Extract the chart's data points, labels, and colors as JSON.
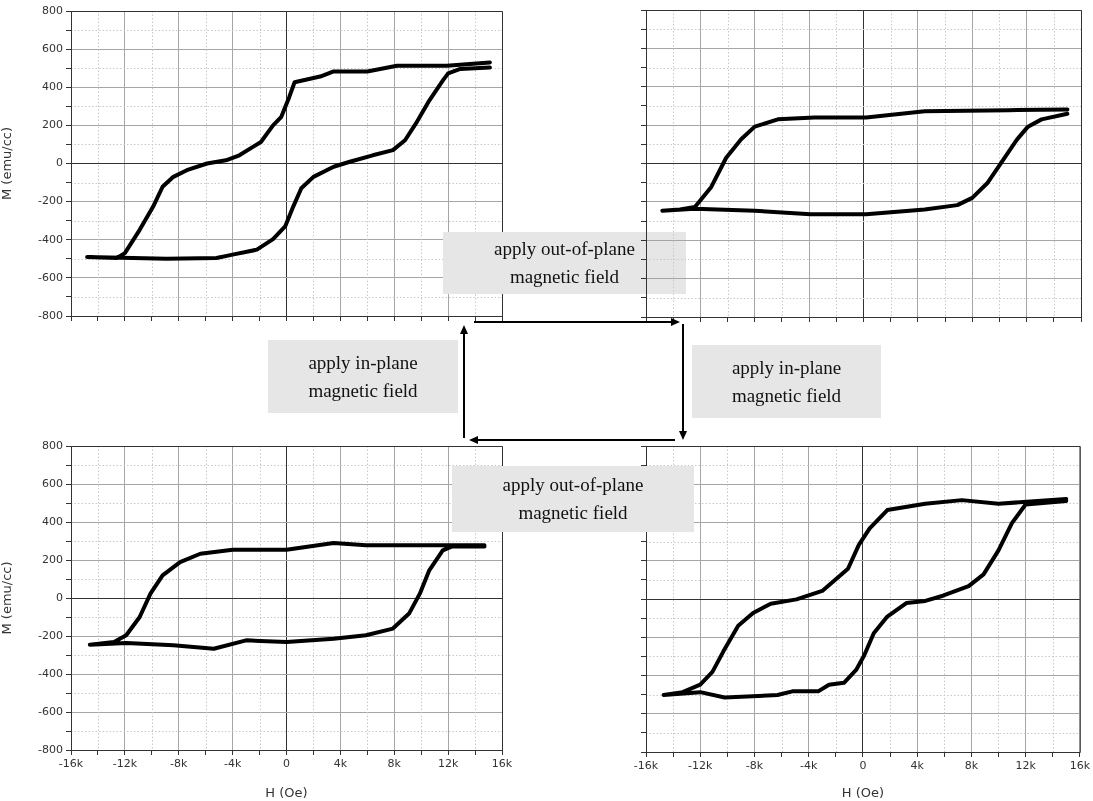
{
  "chart_data": [
    {
      "type": "line",
      "ylabel": "M (emu/cc)",
      "tick_labels": "y",
      "grid": true,
      "marker": "none",
      "line_style": "solid",
      "xlim": [
        -16000,
        16000
      ],
      "ylim": [
        -800,
        800
      ],
      "xticks": [
        {
          "value": -16000,
          "label": null
        },
        {
          "value": -14000,
          "label": null
        },
        {
          "value": -12000,
          "label": null
        },
        {
          "value": -10000,
          "label": null
        },
        {
          "value": -8000,
          "label": null
        },
        {
          "value": -6000,
          "label": null
        },
        {
          "value": -4000,
          "label": null
        },
        {
          "value": -2000,
          "label": null
        },
        {
          "value": 0,
          "label": null
        },
        {
          "value": 2000,
          "label": null
        },
        {
          "value": 4000,
          "label": null
        },
        {
          "value": 6000,
          "label": null
        },
        {
          "value": 8000,
          "label": null
        },
        {
          "value": 10000,
          "label": null
        },
        {
          "value": 12000,
          "label": null
        },
        {
          "value": 14000,
          "label": null
        },
        {
          "value": 16000,
          "label": null
        }
      ],
      "yticks": [
        -800,
        {
          "value": -700,
          "label": null
        },
        -600,
        {
          "value": -500,
          "label": null
        },
        -400,
        {
          "value": -300,
          "label": null
        },
        -200,
        {
          "value": -100,
          "label": null
        },
        0,
        {
          "value": 100,
          "label": null
        },
        200,
        {
          "value": 300,
          "label": null
        },
        400,
        {
          "value": 500,
          "label": null
        },
        600,
        {
          "value": 700,
          "label": null
        },
        800
      ],
      "series": [
        {
          "color": "#000000",
          "x": [
            15100,
            11900,
            8200,
            6000,
            3500,
            2500,
            600,
            200,
            -400,
            -1000,
            -1900,
            -3500,
            -4500,
            -5900,
            -7400,
            -8400,
            -9200,
            -9900,
            -10900,
            -12000,
            -12600,
            -14800,
            -11400,
            -8900,
            -5200,
            -4000,
            -2200,
            -1000,
            -100,
            500,
            1100,
            2000,
            3500,
            4700,
            6400,
            7900,
            8800,
            9600,
            10600,
            11600,
            12000,
            12900,
            15100
          ],
          "values": [
            530,
            513,
            513,
            483,
            483,
            456,
            426,
            348,
            243,
            200,
            113,
            43,
            17,
            0,
            -35,
            -70,
            -122,
            -226,
            -348,
            -470,
            -496,
            -490,
            -496,
            -500,
            -496,
            -478,
            -452,
            -397,
            -330,
            -226,
            -130,
            -70,
            -17,
            9,
            43,
            70,
            122,
            209,
            330,
            435,
            473,
            496,
            504
          ]
        }
      ],
      "annotations": [
        "apply out-of-plane magnetic field"
      ]
    },
    {
      "type": "line",
      "tick_labels": false,
      "grid": true,
      "marker": "none",
      "line_style": "solid",
      "xlim": [
        -16000,
        16000
      ],
      "ylim": [
        -800,
        800
      ],
      "xticks": [
        {
          "value": -16000,
          "label": null
        },
        {
          "value": -14000,
          "label": null
        },
        {
          "value": -12000,
          "label": null
        },
        {
          "value": -10000,
          "label": null
        },
        {
          "value": -8000,
          "label": null
        },
        {
          "value": -6000,
          "label": null
        },
        {
          "value": -4000,
          "label": null
        },
        {
          "value": -2000,
          "label": null
        },
        {
          "value": 0,
          "label": null
        },
        {
          "value": 2000,
          "label": null
        },
        {
          "value": 4000,
          "label": null
        },
        {
          "value": 6000,
          "label": null
        },
        {
          "value": 8000,
          "label": null
        },
        {
          "value": 10000,
          "label": null
        },
        {
          "value": 12000,
          "label": null
        },
        {
          "value": 14000,
          "label": null
        },
        {
          "value": 16000,
          "label": null
        }
      ],
      "yticks": [
        {
          "value": -800,
          "label": null
        },
        {
          "value": -700,
          "label": null
        },
        {
          "value": -600,
          "label": null
        },
        {
          "value": -500,
          "label": null
        },
        {
          "value": -400,
          "label": null
        },
        {
          "value": -300,
          "label": null
        },
        {
          "value": -200,
          "label": null
        },
        {
          "value": -100,
          "label": null
        },
        {
          "value": 0,
          "label": null
        },
        {
          "value": 100,
          "label": null
        },
        {
          "value": 200,
          "label": null
        },
        {
          "value": 300,
          "label": null
        },
        {
          "value": 400,
          "label": null
        },
        {
          "value": 500,
          "label": null
        },
        {
          "value": 600,
          "label": null
        },
        {
          "value": 700,
          "label": null
        },
        {
          "value": 800,
          "label": null
        }
      ],
      "series": [
        {
          "color": "#000000",
          "x": [
            15000,
            10700,
            4500,
            200,
            -3600,
            -6300,
            -8000,
            -9000,
            -10100,
            -11200,
            -12400,
            -13500,
            -14800,
            -12400,
            -8000,
            -3900,
            200,
            4500,
            6900,
            8000,
            9100,
            10200,
            11300,
            12100,
            13100,
            15000
          ],
          "values": [
            282,
            278,
            272,
            240,
            240,
            230,
            192,
            126,
            30,
            -122,
            -227,
            -240,
            -246,
            -236,
            -246,
            -265,
            -265,
            -240,
            -217,
            -179,
            -103,
            11,
            126,
            192,
            230,
            259
          ]
        }
      ],
      "annotations": [
        "apply in-plane magnetic field"
      ]
    },
    {
      "type": "line",
      "xlabel": "H (Oe)",
      "ylabel": "M (emu/cc)",
      "grid": true,
      "marker": "none",
      "line_style": "solid",
      "xlim": [
        -16000,
        16000
      ],
      "ylim": [
        -800,
        800
      ],
      "xticks": [
        {
          "value": -16000,
          "label": "-16k"
        },
        {
          "value": -14000,
          "label": null
        },
        {
          "value": -12000,
          "label": "-12k"
        },
        {
          "value": -10000,
          "label": null
        },
        {
          "value": -8000,
          "label": "-8k"
        },
        {
          "value": -6000,
          "label": null
        },
        {
          "value": -4000,
          "label": "-4k"
        },
        {
          "value": -2000,
          "label": null
        },
        0,
        {
          "value": 2000,
          "label": null
        },
        {
          "value": 4000,
          "label": "4k"
        },
        {
          "value": 6000,
          "label": null
        },
        {
          "value": 8000,
          "label": "8k"
        },
        {
          "value": 10000,
          "label": null
        },
        {
          "value": 12000,
          "label": "12k"
        },
        {
          "value": 14000,
          "label": null
        },
        {
          "value": 16000,
          "label": "16k"
        }
      ],
      "yticks": [
        -800,
        {
          "value": -700,
          "label": null
        },
        -600,
        {
          "value": -500,
          "label": null
        },
        -400,
        {
          "value": -300,
          "label": null
        },
        -200,
        {
          "value": -100,
          "label": null
        },
        0,
        {
          "value": 100,
          "label": null
        },
        200,
        {
          "value": 300,
          "label": null
        },
        400,
        {
          "value": 500,
          "label": null
        },
        600,
        {
          "value": 700,
          "label": null
        },
        800
      ],
      "series": [
        {
          "color": "#000000",
          "x": [
            14700,
            5900,
            3500,
            0,
            -4000,
            -6400,
            -7900,
            -9200,
            -10100,
            -10900,
            -11900,
            -12800,
            -14600,
            -11900,
            -8400,
            -5400,
            -3000,
            0,
            3500,
            5900,
            7900,
            9100,
            9900,
            10600,
            11600,
            12300,
            14700
          ],
          "values": [
            277,
            277,
            289,
            254,
            254,
            233,
            189,
            119,
            23,
            -100,
            -196,
            -232,
            -246,
            -237,
            -249,
            -267,
            -223,
            -232,
            -214,
            -196,
            -161,
            -82,
            23,
            146,
            251,
            272,
            271
          ]
        }
      ],
      "annotations": [
        "apply in-plane magnetic field"
      ]
    },
    {
      "type": "line",
      "xlabel": "H (Oe)",
      "tick_labels": "x",
      "grid": true,
      "marker": "none",
      "line_style": "solid",
      "xlim": [
        -16000,
        16000
      ],
      "ylim": [
        -800,
        800
      ],
      "xticks": [
        {
          "value": -16000,
          "label": "-16k"
        },
        {
          "value": -14000,
          "label": null
        },
        {
          "value": -12000,
          "label": "-12k"
        },
        {
          "value": -10000,
          "label": null
        },
        {
          "value": -8000,
          "label": "-8k"
        },
        {
          "value": -6000,
          "label": null
        },
        {
          "value": -4000,
          "label": "-4k"
        },
        {
          "value": -2000,
          "label": null
        },
        0,
        {
          "value": 2000,
          "label": null
        },
        {
          "value": 4000,
          "label": "4k"
        },
        {
          "value": 6000,
          "label": null
        },
        {
          "value": 8000,
          "label": "8k"
        },
        {
          "value": 10000,
          "label": null
        },
        {
          "value": 12000,
          "label": "12k"
        },
        {
          "value": 14000,
          "label": null
        },
        {
          "value": 16000,
          "label": "16k"
        }
      ],
      "yticks": [
        {
          "value": -800,
          "label": null
        },
        {
          "value": -700,
          "label": null
        },
        {
          "value": -600,
          "label": null
        },
        {
          "value": -500,
          "label": null
        },
        {
          "value": -400,
          "label": null
        },
        {
          "value": -300,
          "label": null
        },
        {
          "value": -200,
          "label": null
        },
        {
          "value": -100,
          "label": null
        },
        {
          "value": 0,
          "label": null
        },
        {
          "value": 100,
          "label": null
        },
        {
          "value": 200,
          "label": null
        },
        {
          "value": 300,
          "label": null
        },
        {
          "value": 400,
          "label": null
        },
        {
          "value": 500,
          "label": null
        },
        {
          "value": 600,
          "label": null
        },
        {
          "value": 700,
          "label": null
        },
        {
          "value": 800,
          "label": null
        }
      ],
      "series": [
        {
          "color": "#000000",
          "x": [
            15000,
            10000,
            7300,
            4600,
            1800,
            500,
            -300,
            -1100,
            -3000,
            -4900,
            -6800,
            -8100,
            -9200,
            -10300,
            -11100,
            -12000,
            -13300,
            -14700,
            -12000,
            -10200,
            -6300,
            -5200,
            -3300,
            -2500,
            -1400,
            -500,
            100,
            800,
            1800,
            3200,
            4600,
            5900,
            7800,
            8900,
            10000,
            11000,
            12000,
            15000
          ],
          "values": [
            523,
            498,
            517,
            498,
            465,
            369,
            283,
            158,
            42,
            -2,
            -25,
            -73,
            -140,
            -275,
            -381,
            -448,
            -487,
            -502,
            -487,
            -515,
            -502,
            -483,
            -483,
            -448,
            -438,
            -371,
            -294,
            -179,
            -92,
            -21,
            -10,
            17,
            67,
            129,
            254,
            398,
            494,
            513
          ]
        }
      ],
      "annotations": [
        "apply out-of-plane magnetic field"
      ]
    }
  ]
}
